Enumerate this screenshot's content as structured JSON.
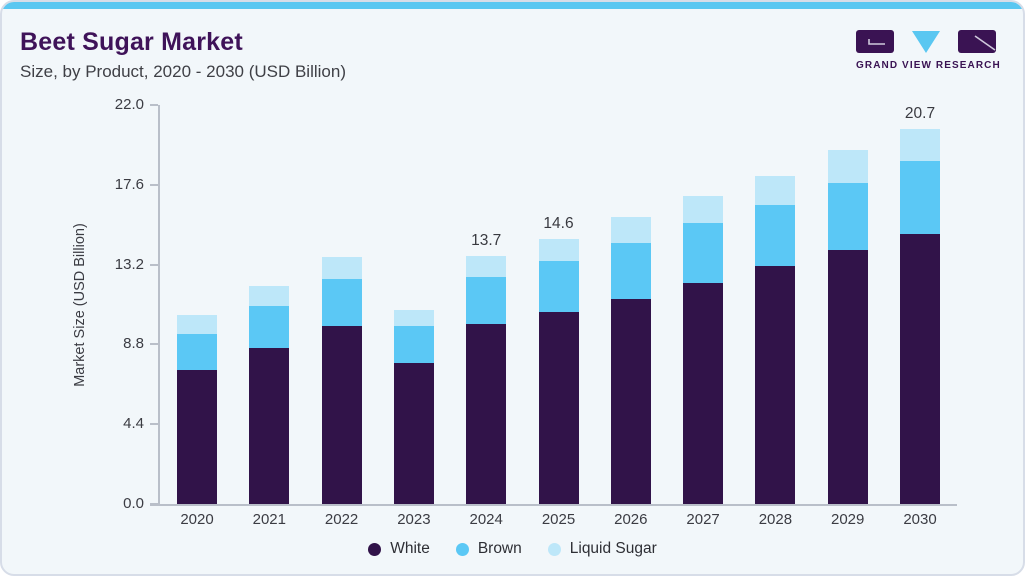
{
  "header": {
    "title": "Beet Sugar Market",
    "subtitle": "Size, by Product, 2020 - 2030 (USD Billion)",
    "logo_text": "GRAND VIEW RESEARCH"
  },
  "colors": {
    "title_purple": "#3f1359",
    "logo_purple": "#3a1353",
    "accent_blue": "#5ac7f1",
    "card_bg": "#f2f7fa",
    "axis_gray": "#b9bfc9",
    "text_dark": "#3b3c43"
  },
  "chart_data": {
    "type": "bar",
    "stacked": true,
    "title": "Beet Sugar Market",
    "subtitle": "Size, by Product, 2020 - 2030 (USD Billion)",
    "xlabel": "",
    "ylabel": "Market Size (USD Billion)",
    "ylim": [
      0,
      22
    ],
    "yticks": [
      0.0,
      4.4,
      8.8,
      13.2,
      17.6,
      22.0
    ],
    "ytick_labels": [
      "0.0",
      "4.4",
      "8.8",
      "13.2",
      "17.6",
      "22.0"
    ],
    "grid": false,
    "legend_position": "bottom",
    "categories": [
      "2020",
      "2021",
      "2022",
      "2023",
      "2024",
      "2025",
      "2026",
      "2027",
      "2028",
      "2029",
      "2030"
    ],
    "series": [
      {
        "name": "White",
        "color": "#311349",
        "values": [
          7.4,
          8.6,
          9.8,
          7.8,
          9.9,
          10.6,
          11.3,
          12.2,
          13.1,
          14.0,
          14.9
        ]
      },
      {
        "name": "Brown",
        "color": "#5bc8f5",
        "values": [
          2.0,
          2.3,
          2.6,
          2.0,
          2.6,
          2.8,
          3.1,
          3.3,
          3.4,
          3.7,
          4.0
        ]
      },
      {
        "name": "Liquid Sugar",
        "color": "#bde7f9",
        "values": [
          1.0,
          1.1,
          1.2,
          0.9,
          1.2,
          1.2,
          1.4,
          1.5,
          1.6,
          1.8,
          1.8
        ]
      }
    ],
    "totals": [
      10.4,
      12.0,
      13.6,
      10.7,
      13.7,
      14.6,
      15.8,
      17.0,
      18.1,
      19.5,
      20.7
    ],
    "total_labels": [
      "",
      "",
      "",
      "",
      "13.7",
      "14.6",
      "",
      "",
      "",
      "",
      "20.7"
    ]
  }
}
